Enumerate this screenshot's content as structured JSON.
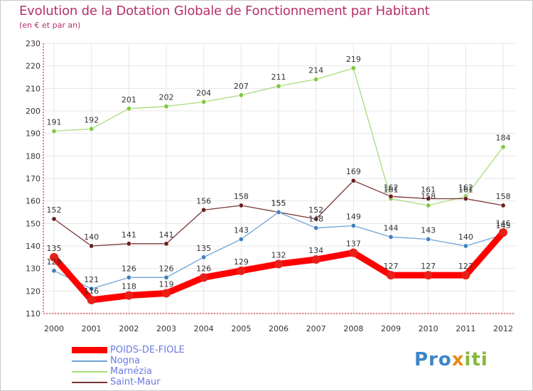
{
  "title": "Evolution de la Dotation Globale de Fonctionnement par Habitant",
  "subtitle": "(en € et par an)",
  "logo": {
    "part1": "Pro",
    "part2": "x",
    "part3": "iti"
  },
  "colors": {
    "title": "#b5306b",
    "axis": "#cc0000",
    "grid": "#e6e6e6",
    "legend_text": "#6b79e0"
  },
  "chart_data": {
    "type": "line",
    "x": [
      2000,
      2001,
      2002,
      2003,
      2004,
      2005,
      2006,
      2007,
      2008,
      2009,
      2010,
      2011,
      2012
    ],
    "ylim": [
      110,
      230
    ],
    "yticks": [
      110,
      120,
      130,
      140,
      150,
      160,
      170,
      180,
      190,
      200,
      210,
      220,
      230
    ],
    "grid": true,
    "series": [
      {
        "name": "POIDS-DE-FIOLE",
        "color": "#ff0000",
        "marker": "#e8201a",
        "width": "thick",
        "values": [
          135,
          116,
          118,
          119,
          126,
          129,
          132,
          134,
          137,
          127,
          127,
          127,
          146
        ]
      },
      {
        "name": "Nogna",
        "color": "#6fa3d6",
        "marker": "#3f7fc0",
        "width": "thin",
        "values": [
          129,
          121,
          126,
          126,
          135,
          143,
          155,
          148,
          149,
          144,
          143,
          140,
          145
        ]
      },
      {
        "name": "Marnézia",
        "color": "#a7dd7c",
        "marker": "#7fc83f",
        "width": "thin",
        "values": [
          191,
          192,
          201,
          202,
          204,
          207,
          211,
          214,
          219,
          161,
          158,
          162,
          184
        ]
      },
      {
        "name": "Saint-Maur",
        "color": "#7a3535",
        "marker": "#6b1f1f",
        "width": "thin",
        "values": [
          152,
          140,
          141,
          141,
          156,
          158,
          155,
          152,
          169,
          162,
          161,
          161,
          158
        ]
      }
    ]
  }
}
